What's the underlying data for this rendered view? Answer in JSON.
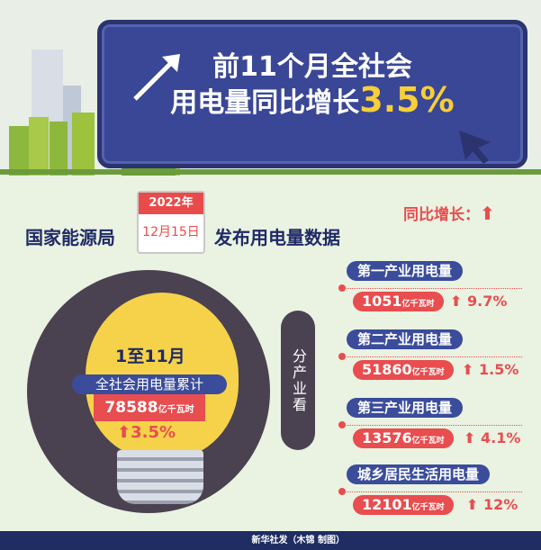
{
  "header": {
    "title_line1": "前11个月全社会",
    "title_line2": "用电量同比增长",
    "title_highlight": "3.5%"
  },
  "intro": {
    "source": "国家能源局",
    "calendar_year": "2022年",
    "calendar_date": "12月15日",
    "action": "发布用电量数据",
    "legend": "同比增长：",
    "legend_icon": "up-arrow-icon"
  },
  "total": {
    "period": "1至11月",
    "label": "全社会用电量累计",
    "value": "78588",
    "unit": "亿千瓦时",
    "growth": "3.5%"
  },
  "side_label": "分产业看",
  "categories": [
    {
      "label": "第一产业用电量",
      "value": "1051",
      "unit": "亿千瓦时",
      "growth": "9.7%"
    },
    {
      "label": "第二产业用电量",
      "value": "51860",
      "unit": "亿千瓦时",
      "growth": "1.5%"
    },
    {
      "label": "第三产业用电量",
      "value": "13576",
      "unit": "亿千瓦时",
      "growth": "4.1%"
    },
    {
      "label": "城乡居民生活用电量",
      "value": "12101",
      "unit": "亿千瓦时",
      "growth": "12%"
    }
  ],
  "footer": {
    "credit": "新华社发（木锦 制图）"
  },
  "colors": {
    "navy": "#3a4c9a",
    "red": "#e84d4f",
    "yellow": "#f6d24a",
    "bg": "#eaf2e1"
  }
}
